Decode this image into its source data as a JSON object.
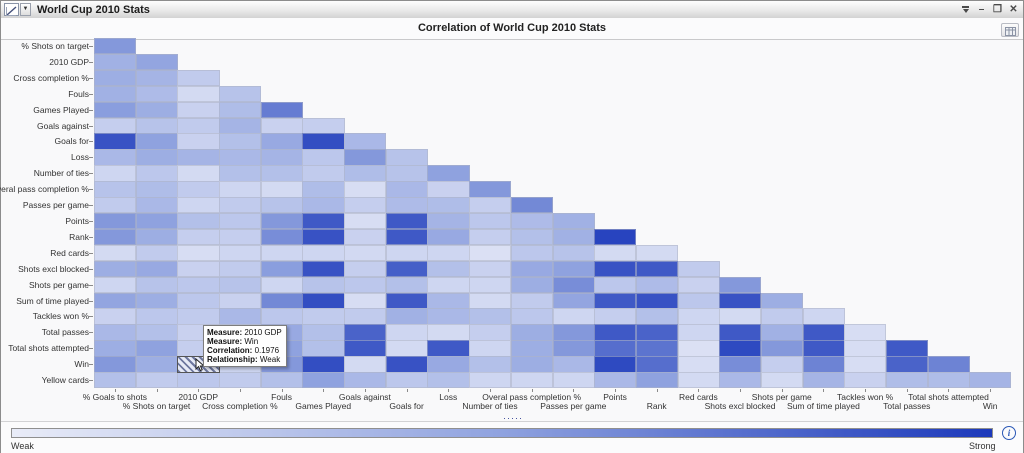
{
  "window": {
    "title": "World Cup 2010 Stats",
    "dropdown_arrow": "▼",
    "controls": {
      "minimize": "–",
      "maximize": "❐",
      "close": "✕"
    }
  },
  "chart": {
    "title": "Correlation of World Cup 2010 Stats"
  },
  "tooltip": {
    "lines": [
      {
        "label": "Measure",
        "value": "2010 GDP"
      },
      {
        "label": "Measure",
        "value": "Win"
      },
      {
        "label": "Correlation",
        "value": "0.1976"
      },
      {
        "label": "Relationship",
        "value": "Weak"
      }
    ]
  },
  "splitter_dots": "·····",
  "legend": {
    "weak_label": "Weak",
    "strong_label": "Strong",
    "info_glyph": "i"
  },
  "chart_data": {
    "type": "heatmap",
    "title": "Correlation of World Cup 2010 Stats",
    "shape": "lower-triangle",
    "colors": {
      "min": "#e9ecf8",
      "mid": "#8fa2df",
      "max": "#1c39bb"
    },
    "legend": {
      "min_label": "Weak",
      "max_label": "Strong",
      "position": "bottom"
    },
    "x_categories": [
      "% Goals to shots",
      "% Shots on target",
      "2010 GDP",
      "Cross completion %",
      "Fouls",
      "Games Played",
      "Goals against",
      "Goals for",
      "Loss",
      "Number of ties",
      "Overal pass completion %",
      "Passes per game",
      "Points",
      "Rank",
      "Red cards",
      "Shots excl blocked",
      "Shots per game",
      "Sum of time played",
      "Tackles won %",
      "Total passes",
      "Total shots attempted",
      "Win"
    ],
    "y_categories": [
      "% Shots on target",
      "2010 GDP",
      "Cross completion %",
      "Fouls",
      "Games Played",
      "Goals against",
      "Goals for",
      "Loss",
      "Number of ties",
      "Overal pass completion %",
      "Passes per game",
      "Points",
      "Rank",
      "Red cards",
      "Shots excl blocked",
      "Shots per game",
      "Sum of time played",
      "Tackles won %",
      "Total passes",
      "Total shots attempted",
      "Win",
      "Yellow cards"
    ],
    "values": [
      [
        0.55
      ],
      [
        0.4,
        0.48
      ],
      [
        0.42,
        0.38,
        0.22
      ],
      [
        0.4,
        0.33,
        0.12,
        0.28
      ],
      [
        0.52,
        0.42,
        0.18,
        0.32,
        0.68
      ],
      [
        0.2,
        0.28,
        0.22,
        0.38,
        0.18,
        0.2
      ],
      [
        0.88,
        0.5,
        0.18,
        0.3,
        0.45,
        0.9,
        0.35
      ],
      [
        0.35,
        0.42,
        0.38,
        0.35,
        0.38,
        0.25,
        0.55,
        0.28
      ],
      [
        0.15,
        0.25,
        0.12,
        0.3,
        0.3,
        0.22,
        0.32,
        0.28,
        0.5
      ],
      [
        0.28,
        0.32,
        0.22,
        0.15,
        0.12,
        0.32,
        0.1,
        0.35,
        0.18,
        0.55
      ],
      [
        0.22,
        0.35,
        0.15,
        0.22,
        0.28,
        0.35,
        0.2,
        0.33,
        0.32,
        0.2,
        0.62
      ],
      [
        0.55,
        0.5,
        0.3,
        0.25,
        0.55,
        0.85,
        0.1,
        0.85,
        0.38,
        0.25,
        0.33,
        0.4
      ],
      [
        0.55,
        0.42,
        0.2,
        0.2,
        0.6,
        0.88,
        0.18,
        0.85,
        0.45,
        0.2,
        0.3,
        0.4,
        0.95
      ],
      [
        0.12,
        0.22,
        0.1,
        0.15,
        0.15,
        0.15,
        0.13,
        0.15,
        0.15,
        0.08,
        0.25,
        0.28,
        0.12,
        0.12
      ],
      [
        0.42,
        0.45,
        0.18,
        0.22,
        0.52,
        0.88,
        0.2,
        0.82,
        0.3,
        0.18,
        0.45,
        0.5,
        0.88,
        0.85,
        0.22
      ],
      [
        0.15,
        0.28,
        0.25,
        0.28,
        0.15,
        0.28,
        0.25,
        0.3,
        0.15,
        0.15,
        0.42,
        0.6,
        0.25,
        0.33,
        0.18,
        0.55
      ],
      [
        0.48,
        0.42,
        0.25,
        0.18,
        0.62,
        0.9,
        0.1,
        0.85,
        0.35,
        0.12,
        0.22,
        0.48,
        0.85,
        0.88,
        0.25,
        0.88,
        0.42
      ],
      [
        0.18,
        0.25,
        0.22,
        0.35,
        0.25,
        0.22,
        0.22,
        0.4,
        0.35,
        0.3,
        0.25,
        0.15,
        0.2,
        0.3,
        0.15,
        0.12,
        0.22,
        0.15
      ],
      [
        0.35,
        0.3,
        0.18,
        0.25,
        0.45,
        0.3,
        0.8,
        0.15,
        0.12,
        0.2,
        0.42,
        0.55,
        0.85,
        0.8,
        0.15,
        0.85,
        0.4,
        0.85,
        0.1
      ],
      [
        0.42,
        0.5,
        0.2,
        0.25,
        0.5,
        0.3,
        0.85,
        0.12,
        0.85,
        0.15,
        0.42,
        0.55,
        0.75,
        0.72,
        0.08,
        0.92,
        0.55,
        0.85,
        0.1,
        0.85
      ],
      [
        0.55,
        0.42,
        0.2,
        0.15,
        0.55,
        0.9,
        0.12,
        0.88,
        0.45,
        0.3,
        0.42,
        0.35,
        0.92,
        0.75,
        0.1,
        0.6,
        0.2,
        0.65,
        0.1,
        0.8,
        0.65
      ],
      [
        0.3,
        0.22,
        0.25,
        0.22,
        0.3,
        0.5,
        0.35,
        0.25,
        0.3,
        0.15,
        0.15,
        0.15,
        0.35,
        0.5,
        0.12,
        0.35,
        0.12,
        0.38,
        0.18,
        0.32,
        0.32,
        0.38
      ]
    ],
    "highlighted_cell": {
      "row": "Win",
      "row_index": 20,
      "col": "2010 GDP",
      "col_index": 2,
      "correlation": "0.1976",
      "relationship": "Weak"
    }
  }
}
